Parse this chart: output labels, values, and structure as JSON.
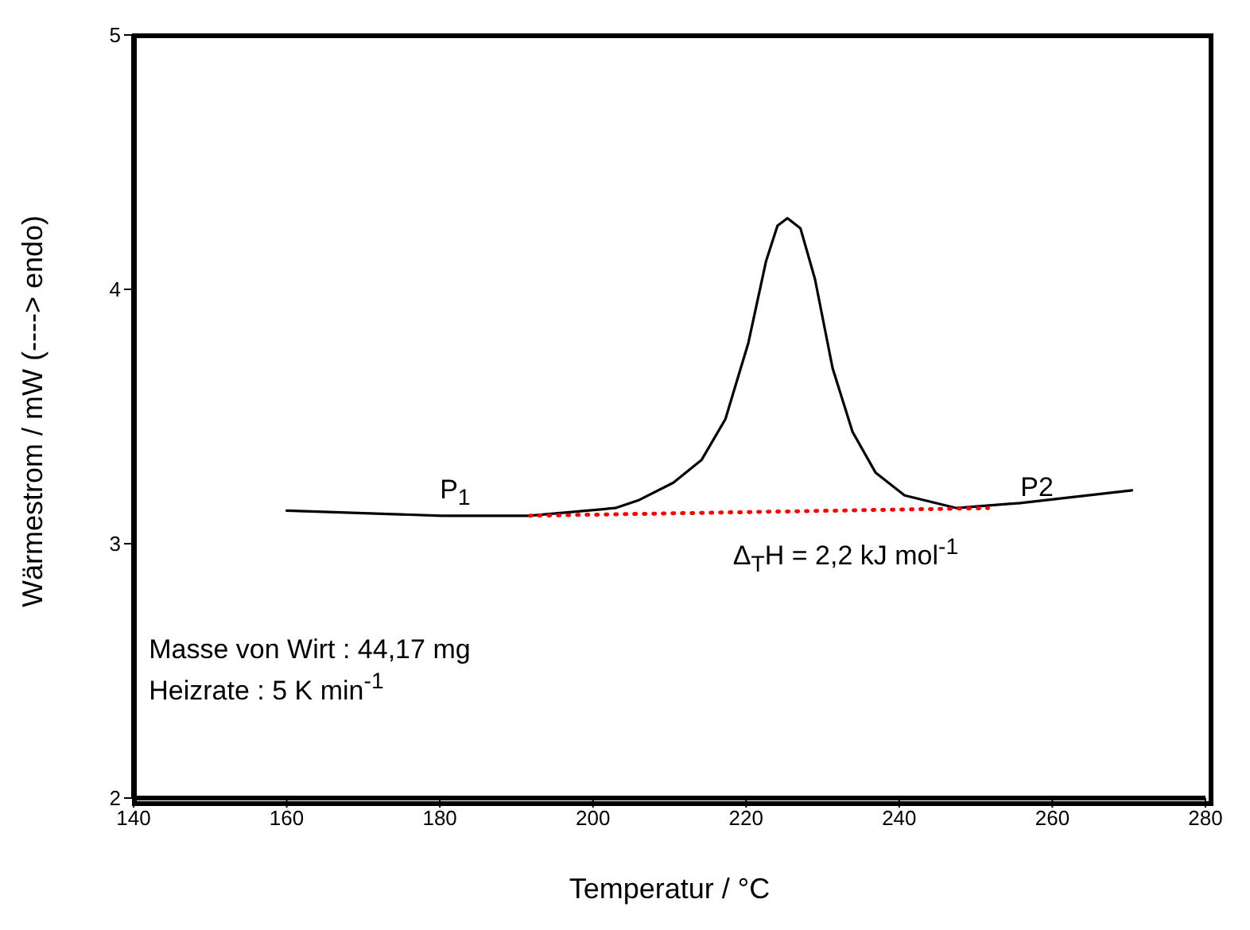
{
  "chart_data": {
    "type": "line",
    "xlabel": "Temperatur / °C",
    "ylabel": "Wärmestrom / mW (----> endo)",
    "xlim": [
      140,
      280
    ],
    "xticks": [
      140,
      160,
      180,
      200,
      220,
      240,
      260,
      280
    ],
    "ylim": [
      2,
      5
    ],
    "yticks": [
      2,
      3,
      4,
      5
    ],
    "marker": "none",
    "line_style": "solid",
    "series": [
      {
        "color": "#000000",
        "x": [
          160,
          180.2,
          191.6,
          202.9,
          205.9,
          210.5,
          214.2,
          217.3,
          220.3,
          222.6,
          224.1,
          225.4,
          227.1,
          229,
          231.3,
          233.9,
          236.9,
          240.7,
          247.5,
          255.8,
          270.4
        ],
        "values": [
          3.13,
          3.11,
          3.11,
          3.14,
          3.17,
          3.24,
          3.33,
          3.49,
          3.79,
          4.11,
          4.25,
          4.28,
          4.24,
          4.04,
          3.69,
          3.44,
          3.28,
          3.19,
          3.14,
          3.16,
          3.21
        ]
      },
      {
        "color": "#ff0000",
        "line_style": "dotted",
        "x": [
          191.8,
          251.6
        ],
        "values": [
          3.11,
          3.14
        ]
      }
    ],
    "annotations": [
      "P$_{1}$",
      "P2",
      "Δ$_{T}$H = 2,2 kJ mol$^{-1}$",
      "Masse von Wirt : 44,17 mg",
      "Heizrate : 5 K min$^{-1}$"
    ]
  }
}
